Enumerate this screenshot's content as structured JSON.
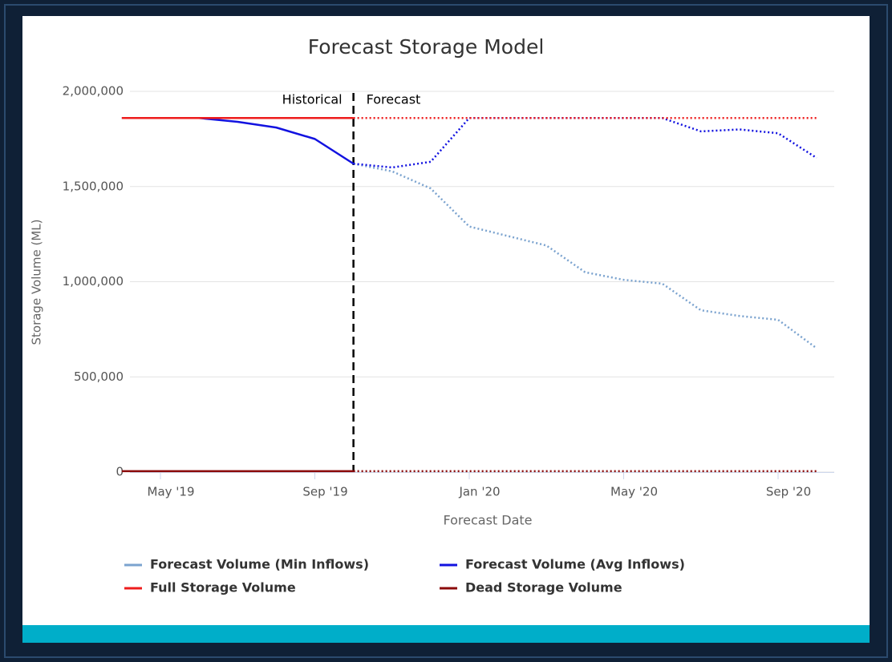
{
  "chart_data": {
    "type": "line",
    "title": "Forecast Storage Model",
    "x_label": "Forecast Date",
    "y_label": "Storage Volume (ML)",
    "annotations": {
      "historical": "Historical",
      "forecast": "Forecast",
      "divider": "2019-10"
    },
    "x": [
      "2019-04",
      "2019-05",
      "2019-06",
      "2019-07",
      "2019-08",
      "2019-09",
      "2019-10",
      "2019-11",
      "2019-12",
      "2020-01",
      "2020-02",
      "2020-03",
      "2020-04",
      "2020-05",
      "2020-06",
      "2020-07",
      "2020-08",
      "2020-09",
      "2020-10"
    ],
    "xticks": [
      {
        "value": "2019-05",
        "label": "May '19"
      },
      {
        "value": "2019-09",
        "label": "Sep '19"
      },
      {
        "value": "2020-01",
        "label": "Jan '20"
      },
      {
        "value": "2020-05",
        "label": "May '20"
      },
      {
        "value": "2020-09",
        "label": "Sep '20"
      }
    ],
    "ylim": [
      0,
      2000000
    ],
    "yticks": [
      0,
      {
        "value": 500000,
        "label": "500,000"
      },
      {
        "value": 1000000,
        "label": "1,000,000"
      },
      {
        "value": 1500000,
        "label": "1,500,000"
      },
      {
        "value": 2000000,
        "label": "2,000,000"
      }
    ],
    "grid": true,
    "legend": "bottom",
    "series": [
      {
        "name": "Forecast Volume (Min Inflows)",
        "color": "#7ba3cf",
        "values": [
          null,
          null,
          null,
          null,
          null,
          null,
          1620000,
          1580000,
          1490000,
          1290000,
          1240000,
          1190000,
          1050000,
          1010000,
          990000,
          850000,
          820000,
          800000,
          650000
        ]
      },
      {
        "name": "Forecast Volume (Avg Inflows)",
        "color": "#1212e0",
        "values": [
          1860000,
          1860000,
          1860000,
          1840000,
          1810000,
          1750000,
          1620000,
          1600000,
          1630000,
          1860000,
          1860000,
          1860000,
          1860000,
          1860000,
          1860000,
          1790000,
          1800000,
          1780000,
          1650000
        ]
      },
      {
        "name": "Full Storage Volume",
        "color": "#ee1c1c",
        "values": [
          1860000,
          1860000,
          1860000,
          1860000,
          1860000,
          1860000,
          1860000,
          1860000,
          1860000,
          1860000,
          1860000,
          1860000,
          1860000,
          1860000,
          1860000,
          1860000,
          1860000,
          1860000,
          1860000
        ]
      },
      {
        "name": "Dead Storage Volume",
        "color": "#8b0a0a",
        "values": [
          5000,
          5000,
          5000,
          5000,
          5000,
          5000,
          5000,
          5000,
          5000,
          5000,
          5000,
          5000,
          5000,
          5000,
          5000,
          5000,
          5000,
          5000,
          5000
        ]
      }
    ]
  }
}
